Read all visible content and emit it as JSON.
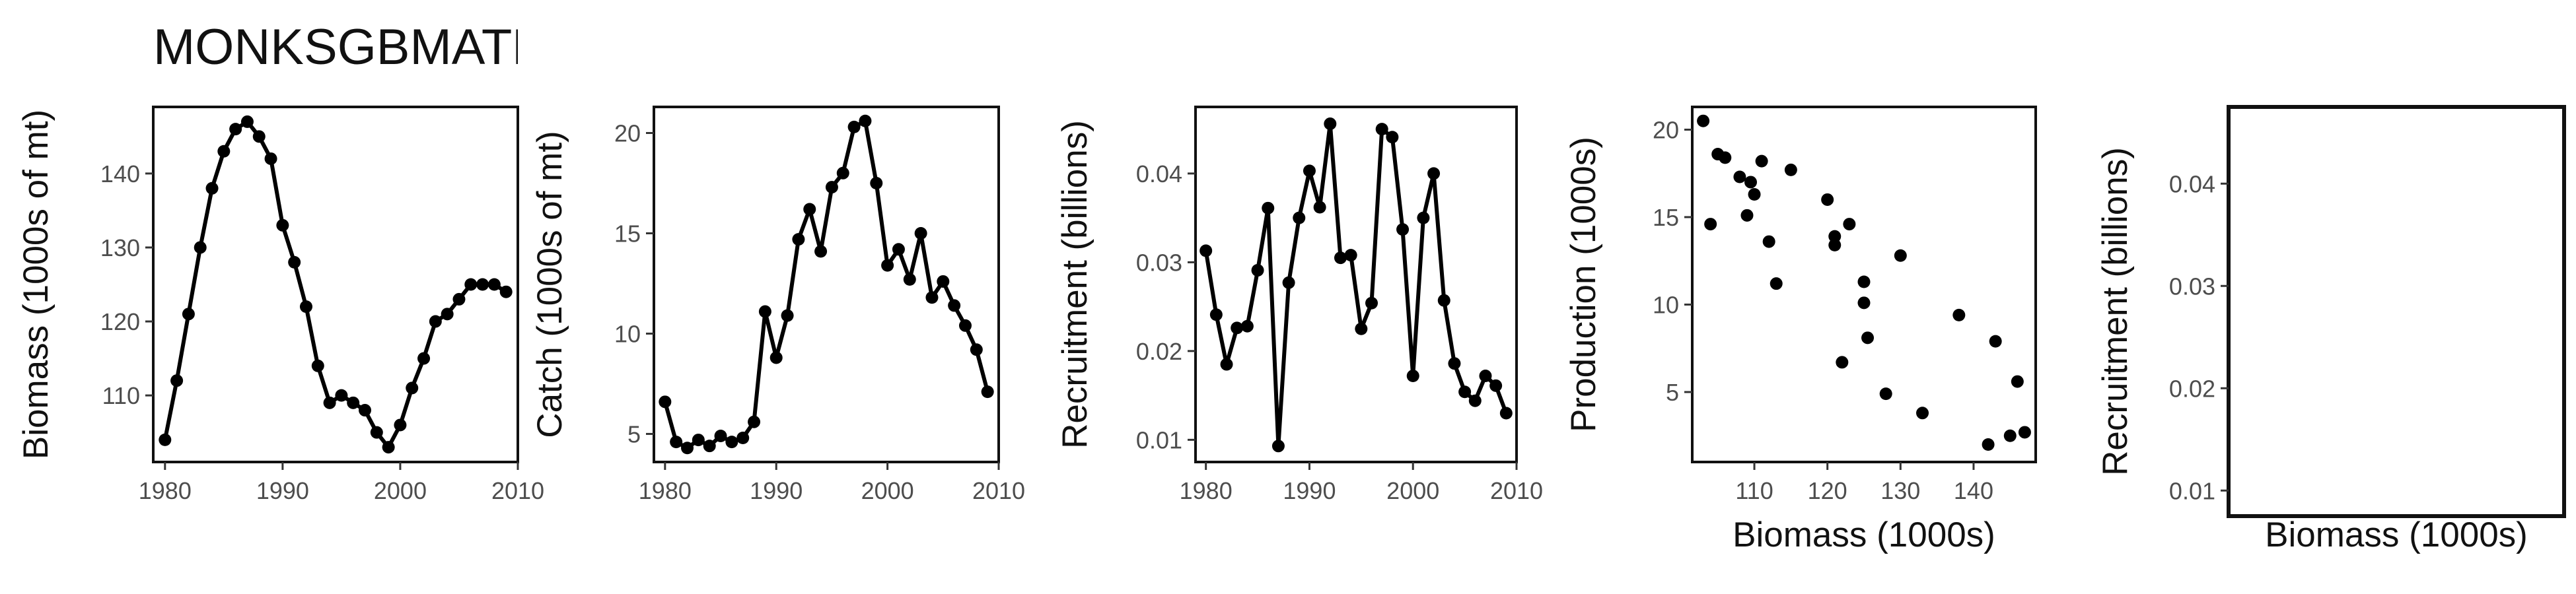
{
  "title": "MONKSGBMATL",
  "chart_data": [
    {
      "type": "line",
      "xlabel": "",
      "ylabel": "Biomass (1000s of mt)",
      "xlim": [
        1979,
        2010
      ],
      "ylim": [
        101,
        149
      ],
      "xticks": [
        1980,
        1990,
        2000,
        2010
      ],
      "yticks": [
        110,
        120,
        130,
        140
      ],
      "x": [
        1980,
        1981,
        1982,
        1983,
        1984,
        1985,
        1986,
        1987,
        1988,
        1989,
        1990,
        1991,
        1992,
        1993,
        1994,
        1995,
        1996,
        1997,
        1998,
        1999,
        2000,
        2001,
        2002,
        2003,
        2004,
        2005,
        2006,
        2007,
        2008,
        2009
      ],
      "y": [
        104,
        112,
        121,
        130,
        138,
        143,
        146,
        147,
        145,
        142,
        133,
        128,
        122,
        114,
        109,
        110,
        109,
        108,
        105,
        103,
        106,
        111,
        115,
        120,
        121,
        123,
        125,
        125,
        125,
        124
      ]
    },
    {
      "type": "line",
      "xlabel": "",
      "ylabel": "Catch (1000s of mt)",
      "xlim": [
        1979,
        2010
      ],
      "ylim": [
        3.6,
        21.3
      ],
      "xticks": [
        1980,
        1990,
        2000,
        2010
      ],
      "yticks": [
        5,
        10,
        15,
        20
      ],
      "x": [
        1980,
        1981,
        1982,
        1983,
        1984,
        1985,
        1986,
        1987,
        1988,
        1989,
        1990,
        1991,
        1992,
        1993,
        1994,
        1995,
        1996,
        1997,
        1998,
        1999,
        2000,
        2001,
        2002,
        2003,
        2004,
        2005,
        2006,
        2007,
        2008,
        2009
      ],
      "y": [
        6.6,
        4.6,
        4.3,
        4.7,
        4.4,
        4.9,
        4.6,
        4.8,
        5.6,
        11.1,
        8.8,
        10.9,
        14.7,
        16.2,
        14.1,
        17.3,
        18.0,
        20.3,
        20.6,
        17.5,
        13.4,
        14.2,
        12.7,
        15.0,
        11.8,
        12.6,
        11.4,
        10.4,
        9.2,
        7.1
      ]
    },
    {
      "type": "line",
      "xlabel": "",
      "ylabel": "Recruitment (billions)",
      "xlim": [
        1979,
        2010
      ],
      "ylim": [
        0.0075,
        0.0475
      ],
      "xticks": [
        1980,
        1990,
        2000,
        2010
      ],
      "yticks": [
        0.01,
        0.02,
        0.03,
        0.04
      ],
      "ytick_labels": [
        "0.01",
        "0.02",
        "0.03",
        "0.04"
      ],
      "x": [
        1980,
        1981,
        1982,
        1983,
        1984,
        1985,
        1986,
        1987,
        1988,
        1989,
        1990,
        1991,
        1992,
        1993,
        1994,
        1995,
        1996,
        1997,
        1998,
        1999,
        2000,
        2001,
        2002,
        2003,
        2004,
        2005,
        2006,
        2007,
        2008,
        2009
      ],
      "y": [
        0.0313,
        0.0241,
        0.0185,
        0.0226,
        0.0228,
        0.0291,
        0.0361,
        0.0093,
        0.0277,
        0.035,
        0.0403,
        0.0362,
        0.0456,
        0.0305,
        0.0308,
        0.0225,
        0.0254,
        0.045,
        0.0441,
        0.0337,
        0.0172,
        0.035,
        0.04,
        0.0257,
        0.0186,
        0.0154,
        0.0144,
        0.0172,
        0.0161,
        0.013
      ]
    },
    {
      "type": "scatter",
      "xlabel": "Biomass (1000s)",
      "ylabel": "Production (1000s)",
      "xlim": [
        101.5,
        148.5
      ],
      "ylim": [
        1.0,
        21.3
      ],
      "xticks": [
        110,
        120,
        130,
        140
      ],
      "yticks": [
        5,
        10,
        15,
        20
      ],
      "x": [
        103,
        104,
        105,
        106,
        108,
        109,
        109.5,
        110,
        111,
        112,
        113,
        115,
        120,
        121,
        121,
        122,
        123,
        125,
        125,
        125.5,
        128,
        130,
        133,
        138,
        142,
        143,
        145,
        146,
        147
      ],
      "y": [
        20.5,
        14.6,
        18.6,
        18.4,
        17.3,
        15.1,
        17.0,
        16.3,
        18.2,
        13.6,
        11.2,
        17.7,
        16.0,
        13.4,
        13.9,
        6.7,
        14.6,
        10.1,
        11.3,
        8.1,
        4.9,
        12.8,
        3.8,
        9.4,
        2.0,
        7.9,
        2.5,
        5.6,
        2.7
      ]
    },
    {
      "type": "scatter",
      "xlabel": "Biomass (1000s)",
      "ylabel": "Recruitment (billions)",
      "ylim": [
        0.0075,
        0.0475
      ],
      "yticks": [
        0.01,
        0.02,
        0.03,
        0.04
      ],
      "ytick_labels": [
        "0.01",
        "0.02",
        "0.03",
        "0.04"
      ],
      "x": [],
      "y": []
    }
  ]
}
